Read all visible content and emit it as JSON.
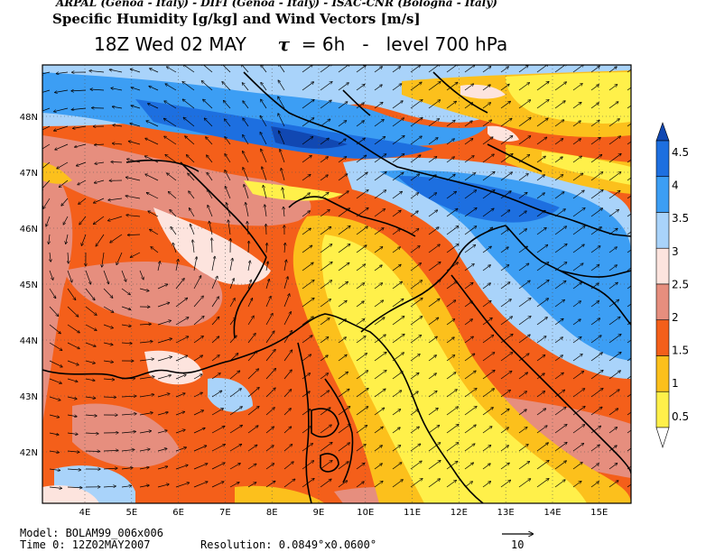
{
  "header": {
    "institutions": "ARPAL (Genoa - Italy)  -  DIFI (Genoa - Italy)  -  ISAC-CNR (Bologna - Italy)",
    "product": "Specific Humidity [g/kg] and Wind Vectors [m/s]",
    "time_label": "18Z Wed 02 MAY",
    "tau_symbol": "τ",
    "tau_text": " = 6h   -   level 700 hPa"
  },
  "map": {
    "lat_labels": [
      "48N",
      "47N",
      "46N",
      "45N",
      "44N",
      "43N",
      "42N"
    ],
    "lon_labels": [
      "4E",
      "5E",
      "6E",
      "7E",
      "8E",
      "9E",
      "10E",
      "11E",
      "12E",
      "13E",
      "14E",
      "15E"
    ],
    "palette": {
      "lt0.5": "#ffffff",
      "0.5-1": "#fff04a",
      "1-1.5": "#fcc01c",
      "1.5-2": "#f45f1a",
      "2-2.5": "#e68e7e",
      "2.5-3": "#fde4de",
      "3-3.5": "#a9d3fa",
      "3.5-4": "#3c9ef4",
      "4-4.5": "#1d6fe0",
      "gt4.5": "#1148b2"
    }
  },
  "colorbar": {
    "labels": [
      "4.5",
      "4",
      "3.5",
      "3",
      "2.5",
      "2",
      "1.5",
      "1",
      "0.5"
    ],
    "colors": [
      "#1148b2",
      "#1d6fe0",
      "#3c9ef4",
      "#a9d3fa",
      "#fde4de",
      "#e68e7e",
      "#f45f1a",
      "#fcc01c",
      "#fff04a",
      "#ffffff"
    ]
  },
  "footer": {
    "model": "Model: BOLAM99_006x006",
    "time0": "Time 0: 12Z02MAY2007",
    "resolution": "Resolution: 0.0849°x0.0600°",
    "ref_vector_label": "10"
  }
}
